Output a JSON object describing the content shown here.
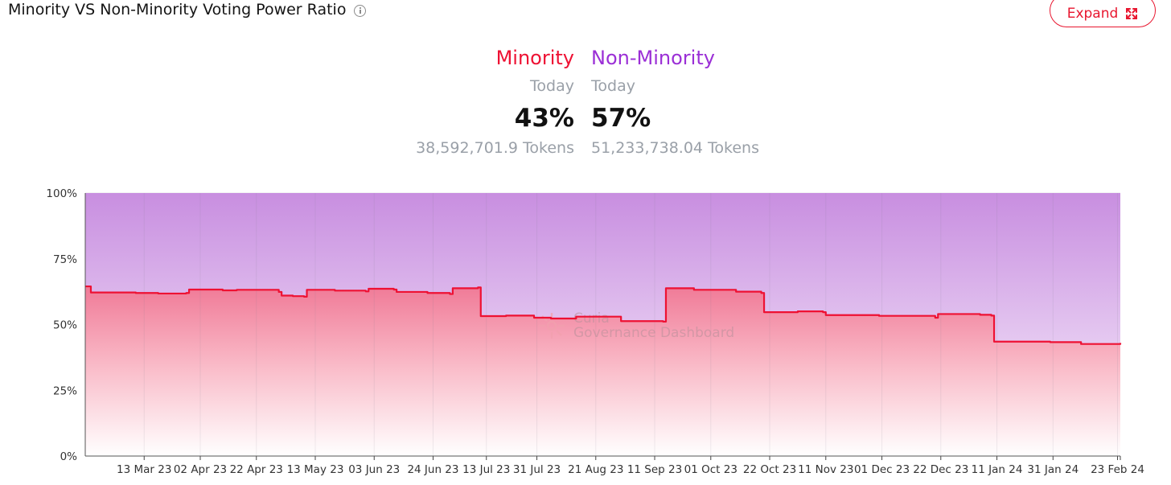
{
  "header": {
    "title": "Minority VS Non-Minority Voting Power Ratio",
    "expand_label": "Expand"
  },
  "stats": {
    "minority": {
      "label": "Minority",
      "sub": "Today",
      "percent": "43%",
      "tokens": "38,592,701.9 Tokens"
    },
    "non_minority": {
      "label": "Non-Minority",
      "sub": "Today",
      "percent": "57%",
      "tokens": "51,233,738.04 Tokens"
    }
  },
  "colors": {
    "minority": "#ee1133",
    "non_minority": "#9b2fd6",
    "accent": "#e8162f"
  },
  "watermark": {
    "line1": "Curia",
    "line2": "Governance Dashboard"
  },
  "chart_data": {
    "type": "area",
    "title": "",
    "xlabel": "",
    "ylabel": "",
    "ylim": [
      0,
      100
    ],
    "y_ticks": [
      "0%",
      "25%",
      "50%",
      "75%",
      "100%"
    ],
    "x_ticks": [
      "13 Mar 23",
      "02 Apr 23",
      "22 Apr 23",
      "13 May 23",
      "03 Jun 23",
      "24 Jun 23",
      "13 Jul 23",
      "31 Jul 23",
      "21 Aug 23",
      "11 Sep 23",
      "01 Oct 23",
      "22 Oct 23",
      "11 Nov 23",
      "01 Dec 23",
      "22 Dec 23",
      "11 Jan 24",
      "31 Jan 24",
      "23 Feb 24"
    ],
    "grid": true,
    "series": [
      {
        "name": "Minority",
        "x": [
          "2023-02-20",
          "2023-02-22",
          "2023-03-10",
          "2023-03-18",
          "2023-03-28",
          "2023-03-29",
          "2023-04-10",
          "2023-04-15",
          "2023-04-30",
          "2023-05-01",
          "2023-05-05",
          "2023-05-09",
          "2023-05-10",
          "2023-05-20",
          "2023-05-31",
          "2023-06-01",
          "2023-06-10",
          "2023-06-11",
          "2023-06-22",
          "2023-06-30",
          "2023-07-01",
          "2023-07-10",
          "2023-07-11",
          "2023-07-20",
          "2023-07-30",
          "2023-08-05",
          "2023-08-14",
          "2023-08-30",
          "2023-09-14",
          "2023-09-15",
          "2023-09-25",
          "2023-10-10",
          "2023-10-19",
          "2023-10-20",
          "2023-11-01",
          "2023-11-10",
          "2023-11-11",
          "2023-11-30",
          "2023-12-20",
          "2023-12-21",
          "2024-01-05",
          "2024-01-09",
          "2024-01-10",
          "2024-01-30",
          "2024-02-10",
          "2024-02-24"
        ],
        "values": [
          64.5,
          62.2,
          62.0,
          61.8,
          62.0,
          63.3,
          63.0,
          63.2,
          62.4,
          61.0,
          60.8,
          60.6,
          63.2,
          62.9,
          62.6,
          63.6,
          63.3,
          62.4,
          62.0,
          61.6,
          63.8,
          64.1,
          53.2,
          53.4,
          52.6,
          52.3,
          53.0,
          51.3,
          51.1,
          63.8,
          63.2,
          62.5,
          62.0,
          54.7,
          55.0,
          54.7,
          53.6,
          53.3,
          52.6,
          54.0,
          53.7,
          53.4,
          43.5,
          43.3,
          42.6,
          43.0
        ]
      },
      {
        "name": "Non-Minority",
        "x": [
          "2023-02-20",
          "2024-02-24"
        ],
        "values": [
          100,
          100
        ]
      }
    ]
  }
}
